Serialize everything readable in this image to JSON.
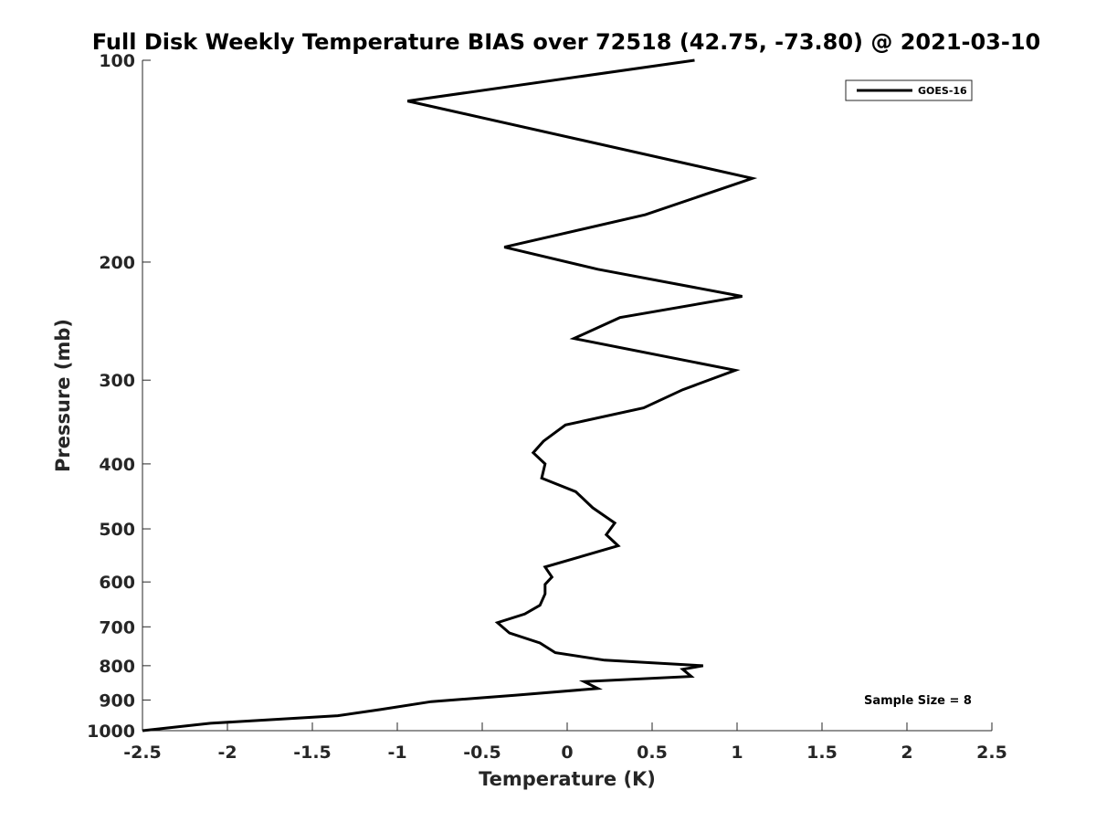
{
  "chart_data": {
    "type": "line",
    "title": "Full Disk Weekly Temperature BIAS over 72518 (42.75, -73.80) @ 2021-03-10",
    "xlabel": "Temperature (K)",
    "ylabel": "Pressure (mb)",
    "xlim": [
      -2.5,
      2.5
    ],
    "ylim": [
      100,
      1000
    ],
    "y_scale": "log",
    "y_reversed": true,
    "xticks": [
      "-2.5",
      "-2",
      "-1.5",
      "-1",
      "-0.5",
      "0",
      "0.5",
      "1",
      "1.5",
      "2",
      "2.5"
    ],
    "yticks": [
      "100",
      "200",
      "300",
      "400",
      "500",
      "600",
      "700",
      "800",
      "900",
      "1000"
    ],
    "grid": false,
    "legend_position": "top-right",
    "line_color": "#000000",
    "series": [
      {
        "name": "GOES-16",
        "x": [
          0.75,
          -0.94,
          1.09,
          0.46,
          -0.37,
          0.18,
          1.03,
          0.31,
          0.04,
          0.99,
          0.68,
          0.45,
          -0.01,
          -0.14,
          -0.2,
          -0.13,
          -0.15,
          0.05,
          0.15,
          0.28,
          0.23,
          0.3,
          -0.13,
          -0.09,
          -0.13,
          -0.13,
          -0.16,
          -0.25,
          -0.41,
          -0.34,
          -0.16,
          -0.07,
          0.22,
          0.8,
          0.68,
          0.73,
          0.1,
          0.18,
          -0.3,
          -0.8,
          -1.1,
          -1.35,
          -2.1,
          -2.5
        ],
        "y": [
          100,
          115,
          150,
          170,
          190,
          205,
          225,
          242,
          260,
          290,
          310,
          330,
          350,
          370,
          385,
          400,
          420,
          440,
          465,
          490,
          510,
          530,
          570,
          590,
          605,
          625,
          650,
          670,
          690,
          715,
          740,
          765,
          785,
          800,
          810,
          830,
          845,
          865,
          885,
          905,
          930,
          950,
          975,
          1000
        ]
      }
    ],
    "annotations": [
      "Sample Size = 8"
    ]
  }
}
